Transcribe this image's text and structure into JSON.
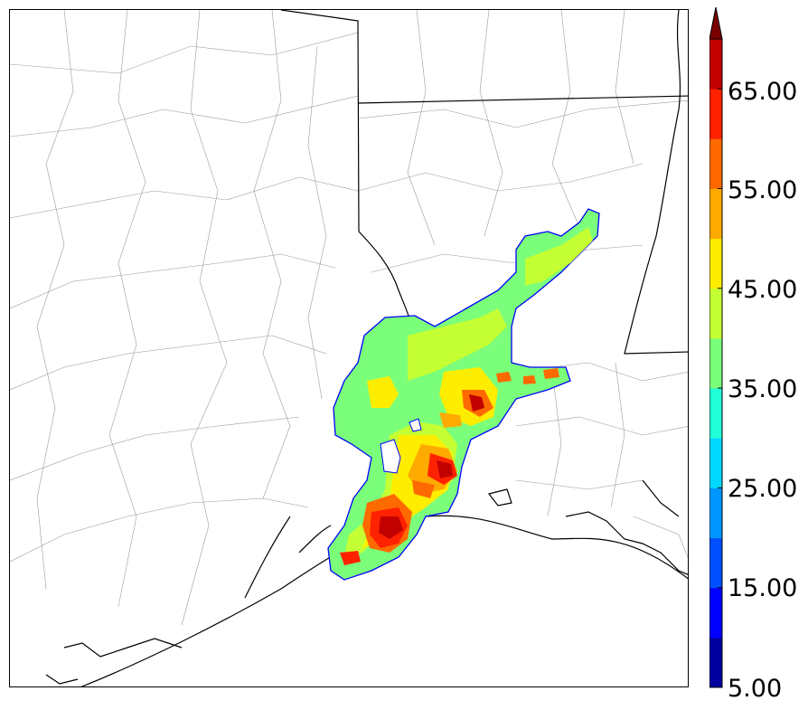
{
  "colorbar": {
    "tick_labels": [
      "65.00",
      "55.00",
      "45.00",
      "35.00",
      "25.00",
      "15.00",
      "5.00"
    ],
    "tick_values": [
      65,
      55,
      45,
      35,
      25,
      15,
      5
    ],
    "min": 5,
    "max": 70,
    "extend": "max",
    "colors": [
      "#00009e",
      "#0000ff",
      "#0050ff",
      "#0096ff",
      "#00d8ff",
      "#22ffd8",
      "#7bff7b",
      "#c4ff33",
      "#ffed00",
      "#ffaa00",
      "#ff6a00",
      "#ff2200",
      "#c20000",
      "#7a0000"
    ]
  },
  "map": {
    "outline_color": "#000000",
    "county_color": "#999999"
  }
}
